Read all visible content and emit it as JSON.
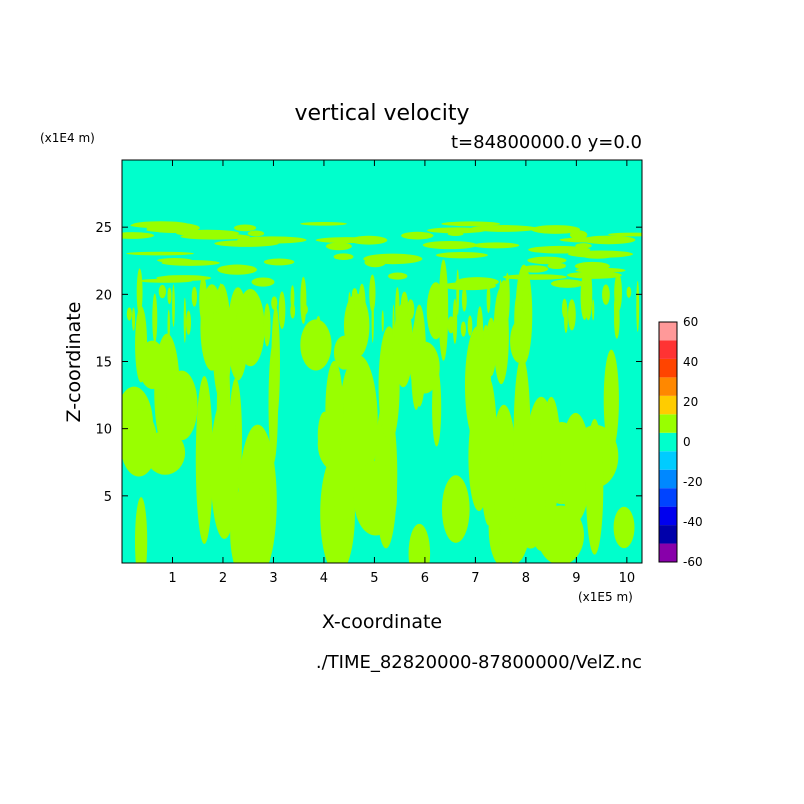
{
  "chart_data": {
    "type": "heatmap",
    "title": "vertical velocity",
    "subtitle": "t=84800000.0 y=0.0",
    "xlabel": "X-coordinate",
    "ylabel": "Z-coordinate",
    "x_unit": "(x1E5 m)",
    "y_unit": "(x1E4 m)",
    "xlim": [
      0,
      10.3
    ],
    "ylim": [
      0,
      30
    ],
    "x_ticks": [
      1,
      2,
      3,
      4,
      5,
      6,
      7,
      8,
      9,
      10
    ],
    "y_ticks": [
      5,
      10,
      15,
      20,
      25
    ],
    "background_level_color": "#00ffcc",
    "positive_level_color": "#99ff00",
    "colorbar": {
      "levels": [
        -60,
        -50,
        -40,
        -30,
        -20,
        -10,
        0,
        10,
        20,
        30,
        40,
        50,
        60
      ],
      "labels": [
        -60,
        -40,
        -20,
        0,
        20,
        40,
        60
      ],
      "colors": [
        "#8800aa",
        "#0000aa",
        "#0000ee",
        "#0044ff",
        "#0088ff",
        "#00ccff",
        "#00ffcc",
        "#99ff00",
        "#ffcc00",
        "#ff8800",
        "#ff4400",
        "#ff3333",
        "#ff9999"
      ]
    },
    "source_file": "./TIME_82820000-87800000/VelZ.nc"
  }
}
